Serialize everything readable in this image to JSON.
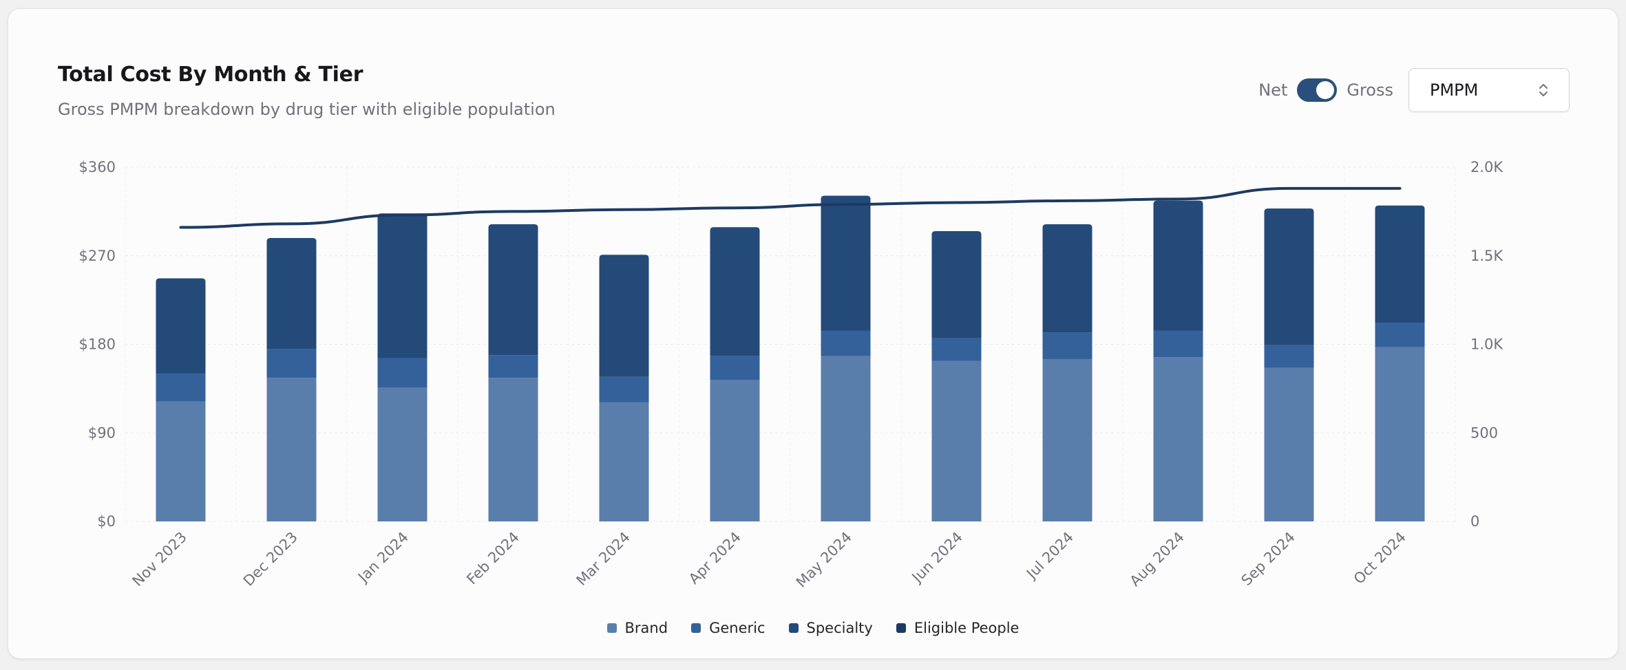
{
  "header": {
    "title": "Total Cost By Month & Tier",
    "subtitle": "Gross PMPM breakdown by drug tier with eligible population"
  },
  "controls": {
    "toggle_left": "Net",
    "toggle_right": "Gross",
    "toggle_state": "Gross",
    "select_value": "PMPM"
  },
  "colors": {
    "brand": "#5a7eab",
    "generic": "#34619a",
    "specialty": "#244a7a",
    "eligible": "#1c3a63"
  },
  "chart_data": {
    "type": "bar",
    "stacked": true,
    "categories": [
      "Nov 2023",
      "Dec 2023",
      "Jan 2024",
      "Feb 2024",
      "Mar 2024",
      "Apr 2024",
      "May 2024",
      "Jun 2024",
      "Jul 2024",
      "Aug 2024",
      "Sep 2024",
      "Oct 2024"
    ],
    "series": [
      {
        "name": "Brand",
        "axis": "left",
        "values": [
          122,
          146,
          136,
          146,
          121,
          144,
          168,
          163,
          165,
          167,
          156,
          177
        ]
      },
      {
        "name": "Generic",
        "axis": "left",
        "values": [
          28,
          29,
          30,
          23,
          26,
          24,
          26,
          23,
          27,
          27,
          23,
          25
        ]
      },
      {
        "name": "Specialty",
        "axis": "left",
        "values": [
          97,
          113,
          147,
          133,
          124,
          131,
          137,
          109,
          110,
          132,
          139,
          119
        ]
      },
      {
        "name": "Eligible People",
        "type": "line",
        "axis": "right",
        "values": [
          1660,
          1680,
          1730,
          1750,
          1760,
          1770,
          1790,
          1800,
          1810,
          1820,
          1880,
          1880
        ]
      }
    ],
    "y_left": {
      "ylim": [
        0,
        360
      ],
      "ticks": [
        "$0",
        "$90",
        "$180",
        "$270",
        "$360"
      ],
      "tick_values": [
        0,
        90,
        180,
        270,
        360
      ]
    },
    "y_right": {
      "ylim": [
        0,
        2000
      ],
      "ticks": [
        "0",
        "500",
        "1.0K",
        "1.5K",
        "2.0K"
      ],
      "tick_values": [
        0,
        500,
        1000,
        1500,
        2000
      ]
    },
    "grid": true,
    "legend": "bottom"
  },
  "legend": [
    {
      "label": "Brand",
      "color": "#5a7eab"
    },
    {
      "label": "Generic",
      "color": "#34619a"
    },
    {
      "label": "Specialty",
      "color": "#244a7a"
    },
    {
      "label": "Eligible People",
      "color": "#1c3a63"
    }
  ]
}
